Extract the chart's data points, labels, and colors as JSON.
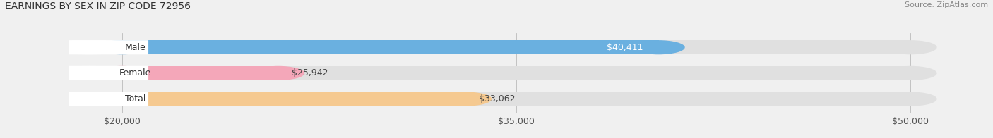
{
  "title": "EARNINGS BY SEX IN ZIP CODE 72956",
  "source": "Source: ZipAtlas.com",
  "categories": [
    "Male",
    "Female",
    "Total"
  ],
  "values": [
    40411,
    25942,
    33062
  ],
  "bar_colors": [
    "#6ab0e0",
    "#f4a7b9",
    "#f5c990"
  ],
  "bg_bar_color": "#e0e0e0",
  "xmin": 20000,
  "xmax": 50000,
  "xticks": [
    20000,
    35000,
    50000
  ],
  "xtick_labels": [
    "$20,000",
    "$35,000",
    "$50,000"
  ],
  "value_labels": [
    "$40,411",
    "$25,942",
    "$33,062"
  ],
  "title_fontsize": 10,
  "source_fontsize": 8,
  "bar_label_fontsize": 9,
  "value_fontsize": 9,
  "tick_fontsize": 9,
  "fig_width": 14.06,
  "fig_height": 1.96,
  "bg_color": "#f0f0f0"
}
